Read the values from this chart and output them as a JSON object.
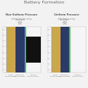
{
  "title": "Battery Formation",
  "title_fontsize": 4.5,
  "title_color": "#666666",
  "bg_color": "#f2f2f2",
  "panel_bg": "#e6e6e6",
  "panel1_title": "Non-Uniform Pressure",
  "panel1_subtitle": "without fixture setup",
  "panel2_title": "Uniform Pressure",
  "panel2_subtitle": "with fixture setup",
  "label_fontsize": 2.2,
  "heading_fontsize": 2.6,
  "gold_color": "#C9A84C",
  "navy_color": "#2B3A67",
  "green_color": "#4EAA5E",
  "white_color": "#F5F5F5",
  "black_color": "#111111",
  "light_gray": "#D8D8D8",
  "tick_color": "#999999",
  "text_color": "#777777",
  "arrow_color": "#AAAAAA"
}
